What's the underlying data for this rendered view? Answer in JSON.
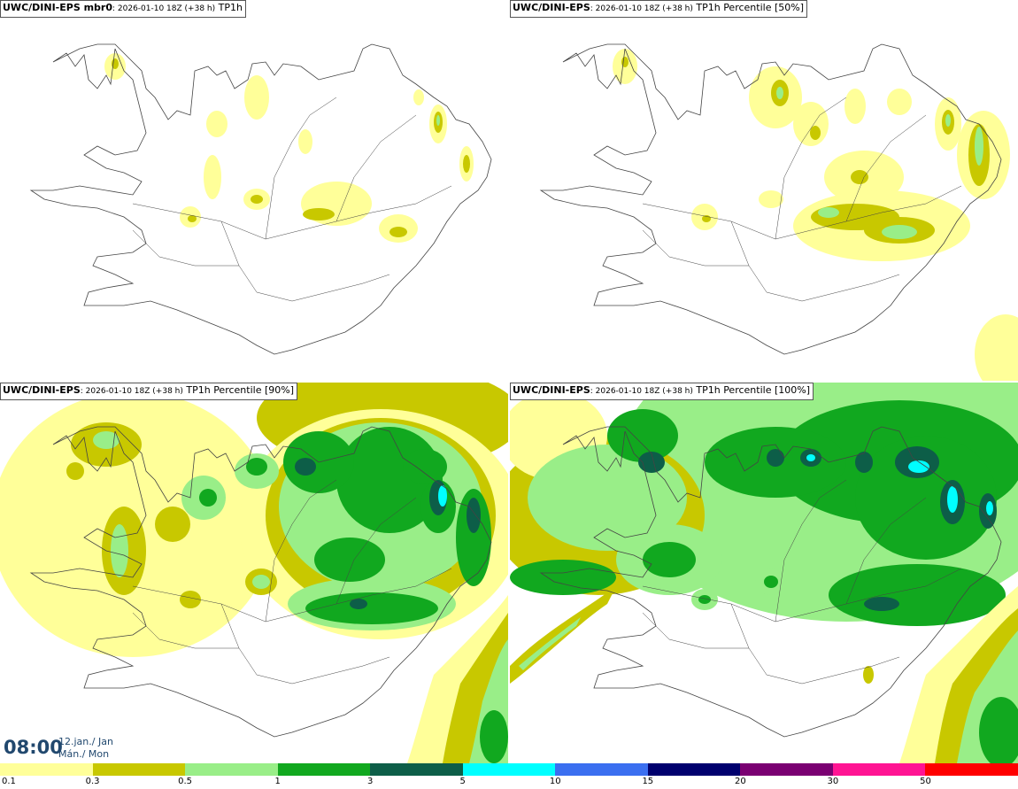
{
  "panels": [
    {
      "model": "UWC/DINI-EPS mbr0",
      "run": ": 2026-01-10 18Z (+38 h)",
      "product": " TP1h"
    },
    {
      "model": "UWC/DINI-EPS",
      "run": ": 2026-01-10 18Z (+38 h)",
      "product": " TP1h Percentile [50%]"
    },
    {
      "model": "UWC/DINI-EPS",
      "run": ": 2026-01-10 18Z (+38 h)",
      "product": " TP1h Percentile [90%]"
    },
    {
      "model": "UWC/DINI-EPS",
      "run": ": 2026-01-10 18Z (+38 h)",
      "product": " TP1h Percentile [100%]"
    }
  ],
  "valid_time": {
    "time": "08:00",
    "date_line1": "12.jan./ Jan",
    "date_line2": "Mán./ Mon"
  },
  "legend": {
    "colors": [
      "#ffff99",
      "#c8c800",
      "#99ee88",
      "#11a81f",
      "#0d5e48",
      "#00ffff",
      "#3b6ff0",
      "#00006e",
      "#7a0072",
      "#ff1493",
      "#ff0000"
    ],
    "labels": [
      "0.1",
      "0.3",
      "0.5",
      "1",
      "3",
      "5",
      "10",
      "15",
      "20",
      "30",
      "50"
    ]
  },
  "colors": {
    "lightyellow": "#ffff99",
    "olive": "#c8c800",
    "lightgreen": "#99ee88",
    "green": "#11a81f",
    "darkgreen": "#0d5e48",
    "cyan": "#00ffff",
    "coast": "#444444"
  }
}
